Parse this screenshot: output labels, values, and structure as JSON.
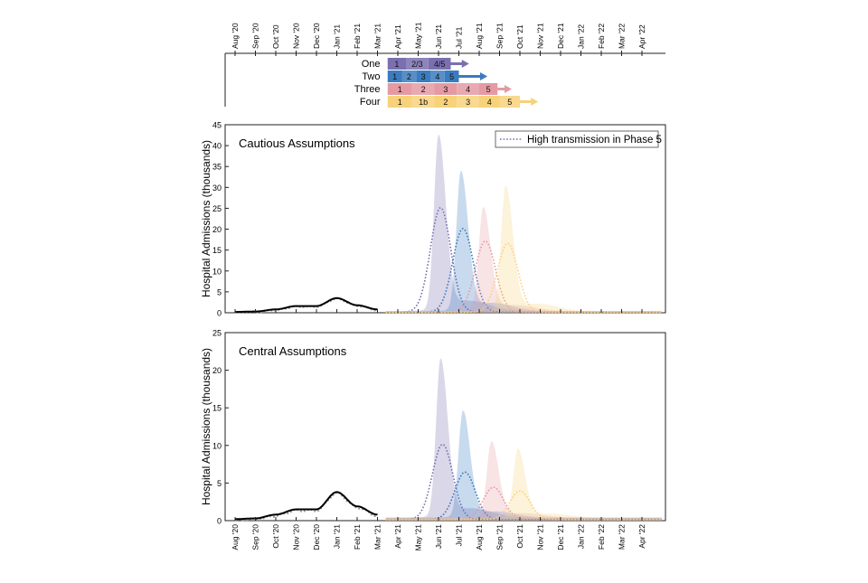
{
  "months": [
    "Aug '20",
    "Sep '20",
    "Oct '20",
    "Nov '20",
    "Dec '20",
    "Jan '21",
    "Feb '21",
    "Mar '21",
    "Apr '21",
    "May '21",
    "Jun '21",
    "Jul '21",
    "Aug '21",
    "Sep '21",
    "Oct '21",
    "Nov '21",
    "Dec '21",
    "Jan '22",
    "Feb '22",
    "Mar '22",
    "Apr '22"
  ],
  "colors": {
    "one": "#7b6fb0",
    "two": "#3b7bbf",
    "three": "#e59aa3",
    "four": "#f7d27a",
    "observed": "#000000",
    "fit": "#9a9a9a"
  },
  "roadmap": {
    "scenarios": [
      {
        "key": "one",
        "name": "One",
        "segments": [
          "1",
          "2/3",
          "4/5"
        ]
      },
      {
        "key": "two",
        "name": "Two",
        "segments": [
          "1",
          "2",
          "3",
          "4",
          "5"
        ]
      },
      {
        "key": "three",
        "name": "Three",
        "segments": [
          "1",
          "2",
          "3",
          "4",
          "5"
        ]
      },
      {
        "key": "four",
        "name": "Four",
        "segments": [
          "1",
          "1b",
          "2",
          "3",
          "4",
          "5"
        ]
      }
    ]
  },
  "chart_data": [
    {
      "type": "area",
      "title": "Cautious Assumptions",
      "ylabel": "Hospital Admissions (thousands)",
      "ylim": [
        0,
        45
      ],
      "yticks": [
        0,
        5,
        10,
        15,
        20,
        25,
        30,
        35,
        40,
        45
      ],
      "legend": {
        "label": "High transmission in Phase 5",
        "placement": "top-right"
      },
      "observed": {
        "months": [
          0,
          1,
          2,
          3,
          4,
          5,
          6,
          7
        ],
        "values": [
          0.2,
          0.3,
          0.8,
          1.6,
          1.6,
          3.5,
          1.8,
          0.8
        ]
      },
      "series": [
        {
          "name": "One",
          "peak_month": 10.0,
          "band_peak": 41.5,
          "dotted_peak": 25.0
        },
        {
          "name": "Two",
          "peak_month": 11.1,
          "band_peak": 33.0,
          "dotted_peak": 20.0
        },
        {
          "name": "Three",
          "peak_month": 12.2,
          "band_peak": 24.5,
          "dotted_peak": 17.0
        },
        {
          "name": "Four",
          "peak_month": 13.3,
          "band_peak": 29.5,
          "dotted_peak": 16.5
        }
      ]
    },
    {
      "type": "area",
      "title": "Central Assumptions",
      "ylabel": "Hospital Admissions (thousands)",
      "ylim": [
        0,
        25
      ],
      "yticks": [
        0,
        5,
        10,
        15,
        20,
        25
      ],
      "observed": {
        "months": [
          0,
          1,
          2,
          3,
          4,
          5,
          6,
          7
        ],
        "values": [
          0.2,
          0.3,
          0.8,
          1.5,
          1.5,
          3.8,
          1.9,
          0.8
        ]
      },
      "series": [
        {
          "name": "One",
          "peak_month": 10.1,
          "band_peak": 20.8,
          "dotted_peak": 10.0
        },
        {
          "name": "Two",
          "peak_month": 11.2,
          "band_peak": 14.0,
          "dotted_peak": 6.3
        },
        {
          "name": "Three",
          "peak_month": 12.6,
          "band_peak": 10.0,
          "dotted_peak": 4.3
        },
        {
          "name": "Four",
          "peak_month": 13.9,
          "band_peak": 9.0,
          "dotted_peak": 3.8
        }
      ]
    }
  ]
}
